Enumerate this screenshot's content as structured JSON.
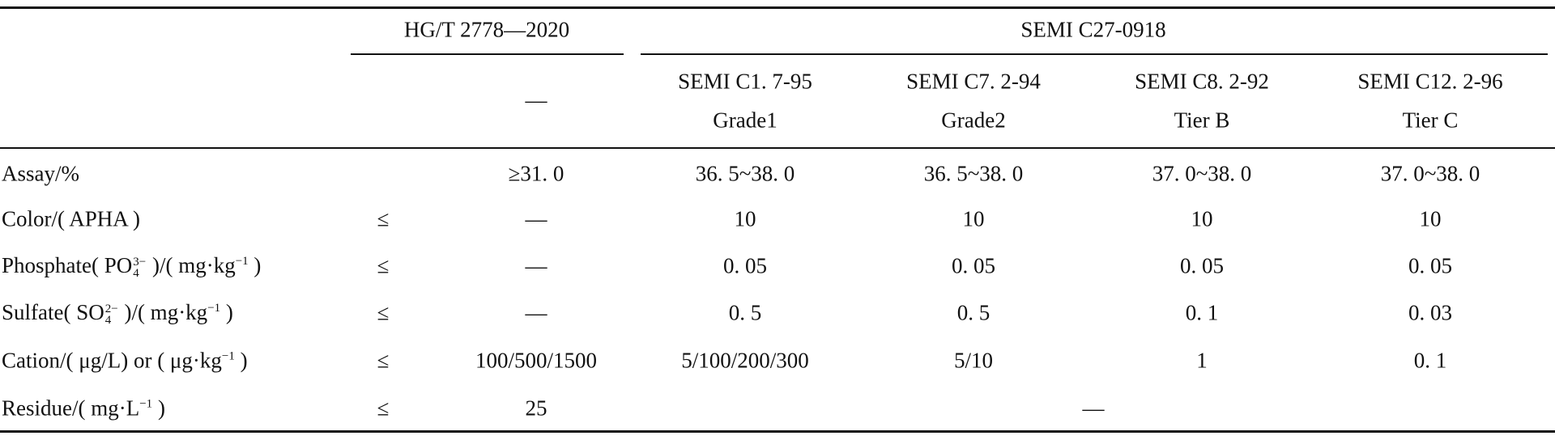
{
  "header": {
    "groups": [
      {
        "label": "HG/T 2778—2020"
      },
      {
        "label": "SEMI C27-0918"
      }
    ],
    "columns": [
      [
        "—"
      ],
      [
        "SEMI C1. 7-95",
        "Grade1"
      ],
      [
        "SEMI C7. 2-94",
        "Grade2"
      ],
      [
        "SEMI C8. 2-92",
        "Tier B"
      ],
      [
        "SEMI C12. 2-96",
        "Tier C"
      ]
    ]
  },
  "rows": [
    {
      "label": [
        "Assay/%"
      ],
      "values": [
        "≥31. 0",
        "36. 5~38. 0",
        "36. 5~38. 0",
        "37. 0~38. 0",
        "37. 0~38. 0"
      ]
    },
    {
      "label": [
        "Color/( APHA )"
      ],
      "op": "≤",
      "values": [
        "—",
        "10",
        "10",
        "10",
        "10"
      ]
    },
    {
      "label": [
        "Phosphate( PO",
        {
          "sub": "4",
          "sup": "3−"
        },
        " )/( mg·kg",
        {
          "sup": "−1"
        },
        " )"
      ],
      "op": "≤",
      "values": [
        "—",
        "0. 05",
        "0. 05",
        "0. 05",
        "0. 05"
      ]
    },
    {
      "label": [
        "Sulfate( SO",
        {
          "sub": "4",
          "sup": "2−"
        },
        " )/( mg·kg",
        {
          "sup": "−1"
        },
        " )"
      ],
      "op": "≤",
      "values": [
        "—",
        "0. 5",
        "0. 5",
        "0. 1",
        "0. 03"
      ]
    },
    {
      "label": [
        "Cation/( μg/L)  or  ( μg·kg",
        {
          "sup": "−1"
        },
        " )"
      ],
      "op": "≤",
      "values": [
        "100/500/1500",
        "5/100/200/300",
        "5/10",
        "1",
        "0. 1"
      ]
    },
    {
      "label": [
        "Residue/( mg·L",
        {
          "sup": "−1"
        },
        " )"
      ],
      "op": "≤",
      "values": [
        "25"
      ],
      "shared": "—"
    }
  ]
}
